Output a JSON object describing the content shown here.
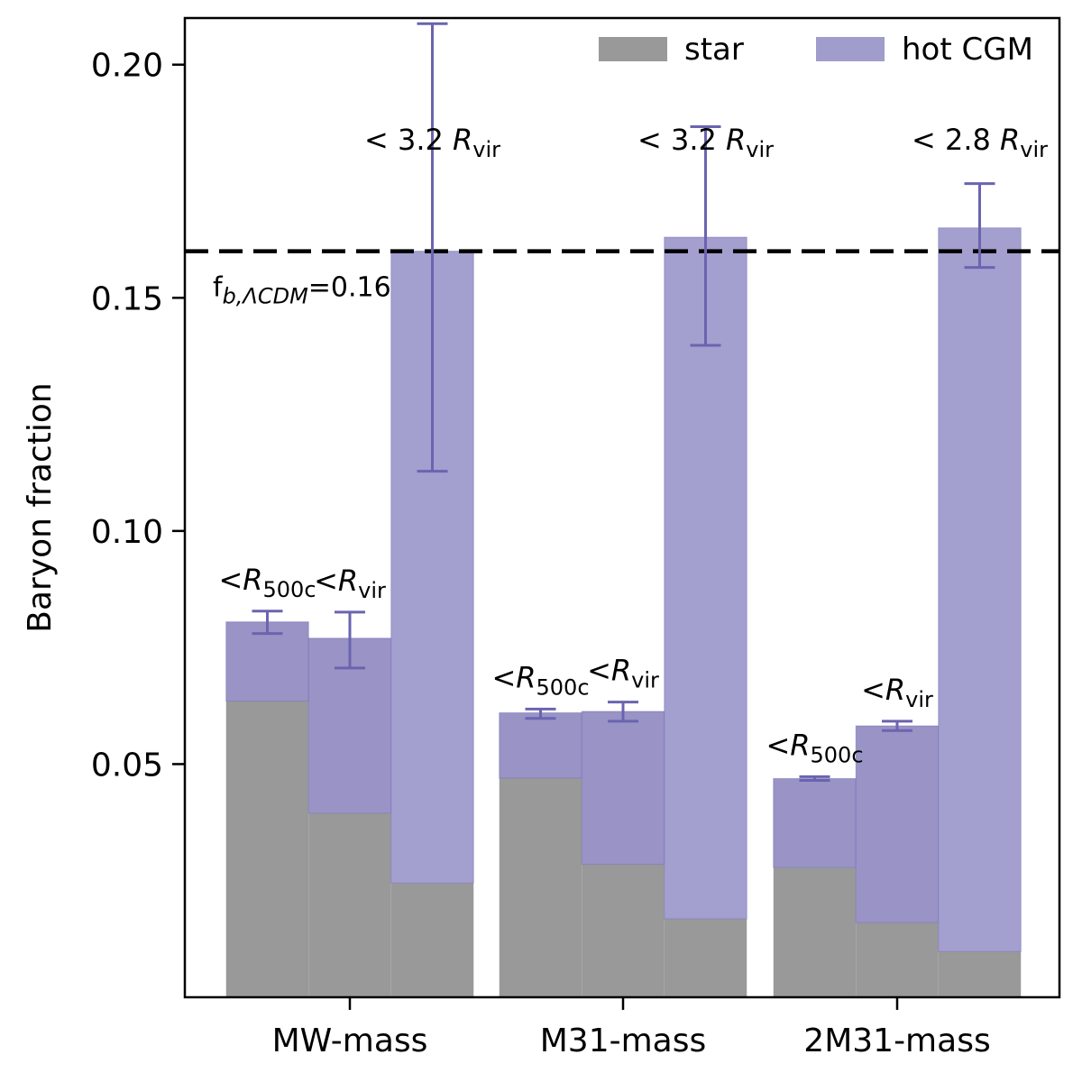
{
  "chart_data": {
    "type": "bar",
    "stacked": true,
    "categories": [
      "MW-mass",
      "M31-mass",
      "2M31-mass"
    ],
    "ylabel": "Baryon fraction",
    "xlabel": "",
    "ylim": [
      0,
      0.21
    ],
    "yticks": [
      0.05,
      0.1,
      0.15,
      0.2
    ],
    "ytick_labels": [
      "0.05",
      "0.10",
      "0.15",
      "0.20"
    ],
    "grid": false,
    "legend": {
      "placement": "top-right",
      "entries": [
        {
          "label": "star",
          "color": "#999999"
        },
        {
          "label": "hot CGM",
          "color": "#a09ccc"
        }
      ]
    },
    "reference_line": {
      "y": 0.16,
      "label_main": "f",
      "label_sub": "b,ΛCDM",
      "label_tail": "=0.16",
      "style": "dashed"
    },
    "colors": {
      "star": "#999999",
      "hot_cgm_inner": "#9993c6",
      "hot_cgm_outer": "#a39fcf",
      "error_bar": "#6a64b0"
    },
    "groups": [
      {
        "category": "MW-mass",
        "bars": [
          {
            "annotation_pre": "<",
            "annotation_var": "R",
            "annotation_sub": "500c",
            "star": 0.0635,
            "hot_cgm": 0.017,
            "total": 0.0805,
            "err_low": 0.078,
            "err_high": 0.0828
          },
          {
            "annotation_pre": "<",
            "annotation_var": "R",
            "annotation_sub": "vir",
            "star": 0.0395,
            "hot_cgm": 0.0375,
            "total": 0.077,
            "err_low": 0.0706,
            "err_high": 0.0826
          },
          {
            "annotation_pre": "< 3.2 ",
            "annotation_var": "R",
            "annotation_sub": "vir",
            "star": 0.0245,
            "hot_cgm": 0.1355,
            "total": 0.16,
            "err_low": 0.1128,
            "err_high": 0.2088
          }
        ]
      },
      {
        "category": "M31-mass",
        "bars": [
          {
            "annotation_pre": "<",
            "annotation_var": "R",
            "annotation_sub": "500c",
            "star": 0.047,
            "hot_cgm": 0.014,
            "total": 0.061,
            "err_low": 0.0598,
            "err_high": 0.0618
          },
          {
            "annotation_pre": "<",
            "annotation_var": "R",
            "annotation_sub": "vir",
            "star": 0.0285,
            "hot_cgm": 0.0328,
            "total": 0.0613,
            "err_low": 0.0592,
            "err_high": 0.0633
          },
          {
            "annotation_pre": "< 3.2 ",
            "annotation_var": "R",
            "annotation_sub": "vir",
            "star": 0.0168,
            "hot_cgm": 0.1462,
            "total": 0.163,
            "err_low": 0.1398,
            "err_high": 0.1867
          }
        ]
      },
      {
        "category": "2M31-mass",
        "bars": [
          {
            "annotation_pre": "<",
            "annotation_var": "R",
            "annotation_sub": "500c",
            "star": 0.0278,
            "hot_cgm": 0.0191,
            "total": 0.0469,
            "err_low": 0.0465,
            "err_high": 0.0473
          },
          {
            "annotation_pre": "<",
            "annotation_var": "R",
            "annotation_sub": "vir",
            "star": 0.016,
            "hot_cgm": 0.0422,
            "total": 0.0582,
            "err_low": 0.0572,
            "err_high": 0.0592
          },
          {
            "annotation_pre": "< 2.8 ",
            "annotation_var": "R",
            "annotation_sub": "vir",
            "star": 0.0098,
            "hot_cgm": 0.1552,
            "total": 0.165,
            "err_low": 0.1565,
            "err_high": 0.1745
          }
        ]
      }
    ]
  }
}
